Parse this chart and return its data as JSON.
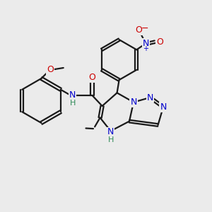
{
  "bg_color": "#ebebeb",
  "bond_color": "#1a1a1a",
  "N_color": "#0000cc",
  "O_color": "#cc0000",
  "NH_color": "#2e8b57",
  "lw": 1.6,
  "xlim": [
    0,
    10
  ],
  "ylim": [
    0,
    10
  ],
  "figsize": [
    3.0,
    3.0
  ],
  "dpi": 100
}
